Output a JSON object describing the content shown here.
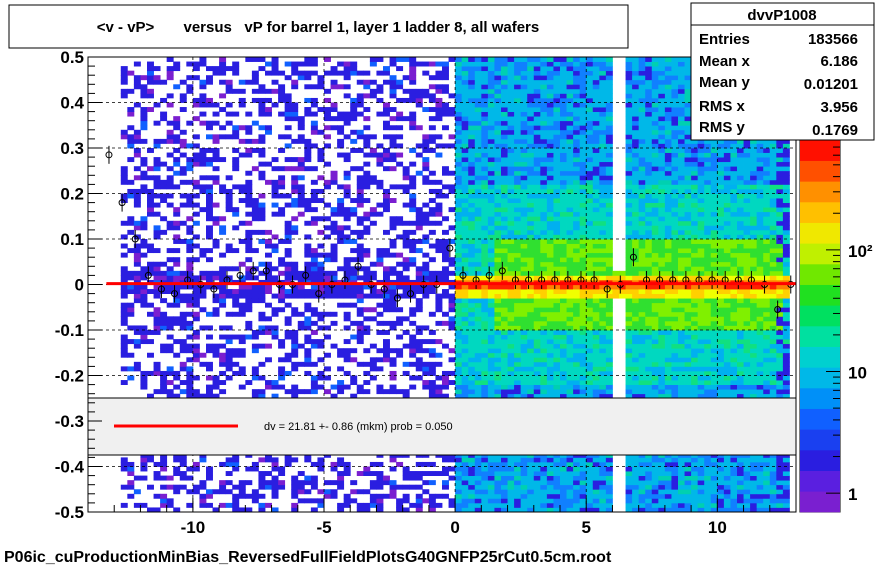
{
  "title_box": {
    "text": "<v - vP>       versus   vP for barrel 1, layer 1 ladder 8, all wafers"
  },
  "stats_box": {
    "name": "dvvP1008",
    "rows": [
      {
        "label": "Entries",
        "value": "183566"
      },
      {
        "label": "Mean x",
        "value": "6.186"
      },
      {
        "label": "Mean y",
        "value": "0.01201"
      },
      {
        "label": "RMS x",
        "value": "3.956"
      },
      {
        "label": "RMS y",
        "value": "0.1769"
      }
    ]
  },
  "fit_legend": {
    "text": "dv =   21.81 +-  0.86 (mkm) prob = 0.050",
    "line_color": "#ff0000"
  },
  "footer": {
    "filename": "P06ic_cuProductionMinBias_ReversedFullFieldPlotsG40GNFP25rCut0.5cm.root"
  },
  "colors": {
    "fit_line": "#ff0000",
    "profile_markers": "#000000",
    "low_density": "#2a1ee0",
    "mid_density": "#00c8e0",
    "high_density": "#ff2000"
  },
  "chart_data": {
    "type": "heatmap",
    "title": "<v - vP>       versus   vP for barrel 1, layer 1 ladder 8, all wafers",
    "xlim": [
      -14,
      13
    ],
    "ylim": [
      -0.5,
      0.5
    ],
    "x_ticks": [
      -10,
      -5,
      0,
      5,
      10
    ],
    "x_tick_labels": [
      "-10",
      "-5",
      "0",
      "5",
      "10"
    ],
    "y_ticks": [
      -0.5,
      -0.4,
      -0.3,
      -0.2,
      -0.1,
      0,
      0.1,
      0.2,
      0.3,
      0.4,
      0.5
    ],
    "y_tick_labels": [
      "-0.5",
      "-0.4",
      "-0.3",
      "-0.2",
      "-0.1",
      "0",
      "0.1",
      "0.2",
      "0.3",
      "0.4",
      "0.5"
    ],
    "grid": true,
    "colorbar": {
      "scale": "log",
      "tick_labels": [
        "1",
        "10",
        "10²"
      ],
      "tick_values": [
        1,
        10,
        100
      ],
      "range": [
        0.7,
        800
      ]
    },
    "fit": {
      "type": "constant",
      "dv_mkm": 21.81,
      "error_mkm": 0.86,
      "prob": 0.05,
      "y_value": 0.002
    },
    "profile_points": {
      "x": [
        -13.2,
        -12.7,
        -12.2,
        -11.7,
        -11.2,
        -10.7,
        -10.2,
        -9.7,
        -9.2,
        -8.7,
        -8.2,
        -7.7,
        -7.2,
        -6.7,
        -6.2,
        -5.7,
        -5.2,
        -4.7,
        -4.2,
        -3.7,
        -3.2,
        -2.7,
        -2.2,
        -1.7,
        -1.2,
        -0.7,
        -0.2,
        0.3,
        0.8,
        1.3,
        1.8,
        2.3,
        2.8,
        3.3,
        3.8,
        4.3,
        4.8,
        5.3,
        5.8,
        6.3,
        6.8,
        7.3,
        7.8,
        8.3,
        8.8,
        9.3,
        9.8,
        10.3,
        10.8,
        11.3,
        11.8,
        12.3,
        12.8
      ],
      "y": [
        0.285,
        0.18,
        0.1,
        0.02,
        -0.01,
        -0.02,
        0.01,
        0.0,
        -0.01,
        0.01,
        0.02,
        0.03,
        0.03,
        0.0,
        0.0,
        0.02,
        -0.02,
        0.0,
        0.01,
        0.04,
        0.0,
        -0.01,
        -0.03,
        -0.02,
        0.0,
        0.0,
        0.08,
        0.02,
        0.01,
        0.02,
        0.03,
        0.01,
        0.01,
        0.01,
        0.01,
        0.01,
        0.01,
        0.01,
        -0.01,
        0.0,
        0.06,
        0.01,
        0.01,
        0.01,
        0.01,
        0.01,
        0.01,
        0.01,
        0.01,
        0.01,
        0.0,
        -0.055,
        0.0
      ]
    }
  }
}
